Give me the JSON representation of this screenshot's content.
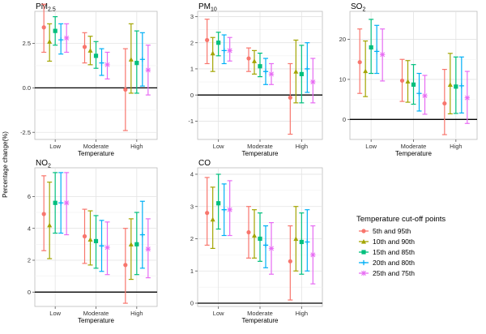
{
  "y_axis_label": "Percentage change(%)",
  "legend": {
    "title": "Temperature cut-off points",
    "placement": "right",
    "entries": [
      {
        "label": "5th and 95th",
        "color": "#F8766D"
      },
      {
        "label": "10th and 90th",
        "color": "#A3A500"
      },
      {
        "label": "15th and 85th",
        "color": "#00BF7D"
      },
      {
        "label": "20th and 80th",
        "color": "#00B0F6"
      },
      {
        "label": "25th and 75th",
        "color": "#E76BF3"
      }
    ]
  },
  "chart_data": [
    {
      "type": "scatter",
      "panel": "PM2.5",
      "title_main": "PM",
      "title_sub": "2.5",
      "xlabel": "Temperature",
      "categories": [
        "Low",
        "Moderate",
        "High"
      ],
      "ylim": [
        -2.9,
        4.3
      ],
      "yticks": [
        -2.5,
        0.0,
        2.5
      ],
      "ytick_labels": [
        "-2.5",
        "0.0",
        "2.5"
      ],
      "series": [
        {
          "name": "5th and 95th",
          "values": [
            [
              3.4,
              2.0,
              4.7
            ],
            [
              2.3,
              1.4,
              3.1
            ],
            [
              -0.1,
              -2.4,
              2.2
            ]
          ]
        },
        {
          "name": "10th and 90th",
          "values": [
            [
              2.6,
              1.5,
              3.6
            ],
            [
              2.1,
              1.3,
              2.9
            ],
            [
              1.6,
              -0.3,
              3.6
            ]
          ]
        },
        {
          "name": "15th and 85th",
          "values": [
            [
              3.2,
              2.4,
              4.0
            ],
            [
              1.8,
              1.1,
              2.6
            ],
            [
              1.4,
              -0.3,
              3.2
            ]
          ]
        },
        {
          "name": "20th and 80th",
          "values": [
            [
              2.7,
              1.9,
              3.6
            ],
            [
              1.4,
              0.7,
              2.2
            ],
            [
              1.6,
              0.1,
              3.1
            ]
          ]
        },
        {
          "name": "25th and 75th",
          "values": [
            [
              2.8,
              2.0,
              3.6
            ],
            [
              1.3,
              0.5,
              2.0
            ],
            [
              1.0,
              -0.4,
              2.4
            ]
          ]
        }
      ]
    },
    {
      "type": "scatter",
      "panel": "PM10",
      "title_main": "PM",
      "title_sub": "10",
      "xlabel": "Temperature",
      "categories": [
        "Low",
        "Moderate",
        "High"
      ],
      "ylim": [
        -1.7,
        3.2
      ],
      "yticks": [
        -1,
        0,
        1,
        2,
        3
      ],
      "ytick_labels": [
        "-1",
        "0",
        "1",
        "2",
        "3"
      ],
      "series": [
        {
          "name": "5th and 95th",
          "values": [
            [
              2.1,
              1.2,
              2.9
            ],
            [
              1.4,
              0.9,
              1.8
            ],
            [
              -0.1,
              -1.5,
              1.2
            ]
          ]
        },
        {
          "name": "10th and 90th",
          "values": [
            [
              1.6,
              0.9,
              2.2
            ],
            [
              1.3,
              0.8,
              1.7
            ],
            [
              0.9,
              -0.3,
              2.1
            ]
          ]
        },
        {
          "name": "15th and 85th",
          "values": [
            [
              2.0,
              1.5,
              2.4
            ],
            [
              1.1,
              0.7,
              1.6
            ],
            [
              0.8,
              -0.3,
              1.9
            ]
          ]
        },
        {
          "name": "20th and 80th",
          "values": [
            [
              1.7,
              1.2,
              2.3
            ],
            [
              0.9,
              0.4,
              1.4
            ],
            [
              1.0,
              0.1,
              2.0
            ]
          ]
        },
        {
          "name": "25th and 75th",
          "values": [
            [
              1.7,
              1.3,
              2.2
            ],
            [
              0.8,
              0.4,
              1.2
            ],
            [
              0.5,
              -0.3,
              1.4
            ]
          ]
        }
      ]
    },
    {
      "type": "scatter",
      "panel": "SO2",
      "title_main": "SO",
      "title_sub": "2",
      "xlabel": "Temperature",
      "categories": [
        "Low",
        "Moderate",
        "High"
      ],
      "ylim": [
        -5,
        27
      ],
      "yticks": [
        0,
        10,
        20
      ],
      "ytick_labels": [
        "0",
        "10",
        "20"
      ],
      "series": [
        {
          "name": "5th and 95th",
          "values": [
            [
              14.3,
              6.5,
              22.6
            ],
            [
              9.7,
              4.5,
              15.0
            ],
            [
              4.0,
              -3.8,
              12.5
            ]
          ]
        },
        {
          "name": "10th and 90th",
          "values": [
            [
              12.1,
              5.7,
              19.6
            ],
            [
              9.5,
              4.3,
              14.7
            ],
            [
              8.7,
              1.4,
              16.5
            ]
          ]
        },
        {
          "name": "15th and 85th",
          "values": [
            [
              18.0,
              11.5,
              25.0
            ],
            [
              8.7,
              3.8,
              13.7
            ],
            [
              8.2,
              1.5,
              15.6
            ]
          ]
        },
        {
          "name": "20th and 80th",
          "values": [
            [
              17.0,
              11.5,
              23.5
            ],
            [
              6.5,
              2.1,
              11.5
            ],
            [
              8.4,
              1.6,
              15.6
            ]
          ]
        },
        {
          "name": "25th and 75th",
          "values": [
            [
              16.2,
              9.6,
              22.6
            ],
            [
              5.9,
              1.3,
              11.0
            ],
            [
              5.4,
              -1.0,
              12.0
            ]
          ]
        }
      ]
    },
    {
      "type": "scatter",
      "panel": "NO2",
      "title_main": "NO",
      "title_sub": "2",
      "xlabel": "Temperature",
      "categories": [
        "Low",
        "Moderate",
        "High"
      ],
      "ylim": [
        -0.9,
        7.8
      ],
      "yticks": [
        0,
        2,
        4,
        6
      ],
      "ytick_labels": [
        "0",
        "2",
        "4",
        "6"
      ],
      "series": [
        {
          "name": "5th and 95th",
          "values": [
            [
              4.9,
              2.6,
              7.3
            ],
            [
              3.5,
              1.8,
              5.2
            ],
            [
              1.7,
              -0.7,
              4.0
            ]
          ]
        },
        {
          "name": "10th and 90th",
          "values": [
            [
              4.2,
              2.1,
              6.9
            ],
            [
              3.3,
              1.7,
              5.1
            ],
            [
              3.0,
              0.8,
              4.6
            ]
          ]
        },
        {
          "name": "15th and 85th",
          "values": [
            [
              5.6,
              3.7,
              7.5
            ],
            [
              3.2,
              1.5,
              4.8
            ],
            [
              3.0,
              1.1,
              5.0
            ]
          ]
        },
        {
          "name": "20th and 80th",
          "values": [
            [
              5.6,
              3.7,
              7.5
            ],
            [
              2.9,
              1.3,
              4.5
            ],
            [
              3.6,
              1.5,
              5.7
            ]
          ]
        },
        {
          "name": "25th and 75th",
          "values": [
            [
              5.6,
              3.6,
              7.5
            ],
            [
              2.8,
              1.1,
              4.4
            ],
            [
              2.7,
              0.9,
              4.6
            ]
          ]
        }
      ]
    },
    {
      "type": "scatter",
      "panel": "CO",
      "title_main": "CO",
      "title_sub": "",
      "xlabel": "Temperature",
      "categories": [
        "Low",
        "Moderate",
        "High"
      ],
      "ylim": [
        -0.1,
        4.2
      ],
      "yticks": [
        0,
        1,
        2,
        3,
        4
      ],
      "ytick_labels": [
        "0",
        "1",
        "2",
        "3",
        "4"
      ],
      "series": [
        {
          "name": "5th and 95th",
          "values": [
            [
              2.8,
              1.8,
              3.9
            ],
            [
              2.2,
              1.4,
              3.0
            ],
            [
              1.3,
              0.1,
              2.4
            ]
          ]
        },
        {
          "name": "10th and 90th",
          "values": [
            [
              2.6,
              1.7,
              3.6
            ],
            [
              2.1,
              1.4,
              2.9
            ],
            [
              2.0,
              1.0,
              3.0
            ]
          ]
        },
        {
          "name": "15th and 85th",
          "values": [
            [
              3.1,
              2.3,
              4.0
            ],
            [
              2.0,
              1.3,
              2.8
            ],
            [
              1.9,
              0.9,
              2.8
            ]
          ]
        },
        {
          "name": "20th and 80th",
          "values": [
            [
              2.9,
              2.1,
              3.7
            ],
            [
              1.8,
              1.1,
              2.4
            ],
            [
              1.9,
              1.0,
              2.9
            ]
          ]
        },
        {
          "name": "25th and 75th",
          "values": [
            [
              2.9,
              2.1,
              3.8
            ],
            [
              1.7,
              0.9,
              2.5
            ],
            [
              1.5,
              0.6,
              2.4
            ]
          ]
        }
      ]
    }
  ]
}
